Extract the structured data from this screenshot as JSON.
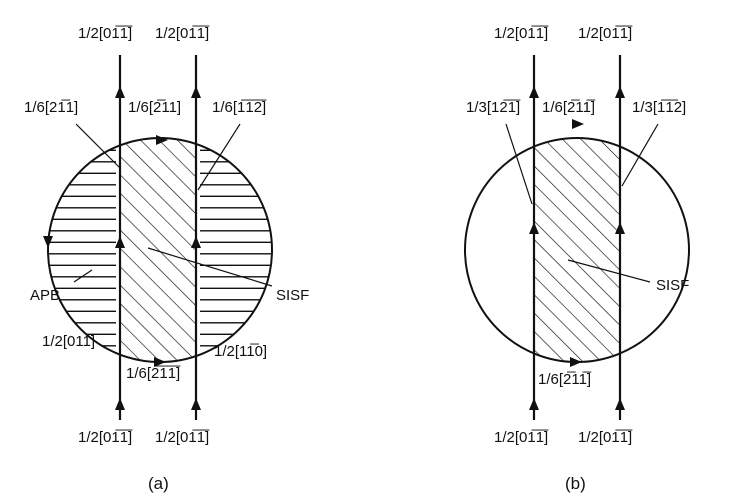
{
  "panels": [
    {
      "id": "a",
      "caption": "(a)",
      "labels": {
        "top_left": "1/2[01̅1̅]",
        "top_right": "1/2[01̅1̅]",
        "partial_left": "1/6[21̅1]",
        "partial_middle": "1/6[2̅11]",
        "partial_right": "1/6[1̅1̅2̅]",
        "apb": "APB",
        "sisf": "SISF",
        "bottom_left_arc": "1/2[011]",
        "bottom_middle": "1/6[2̅1̅1̅]",
        "bottom_right_arc": "1/2[11̅0]",
        "bottom_left": "1/2[01̅1̅]",
        "bottom_right": "1/2[01̅1̅]"
      }
    },
    {
      "id": "b",
      "caption": "(b)",
      "labels": {
        "top_left": "1/2[01̅1̅]",
        "top_right": "1/2[01̅1̅]",
        "partial_left": "1/3[12̅1̅]",
        "partial_middle": "1/6[2̅11̅]",
        "partial_right": "1/3[1̅1̅2]",
        "sisf": "SISF",
        "bottom_middle": "1/6[2̅11̅]",
        "bottom_left": "1/2[01̅1̅]",
        "bottom_right": "1/2[01̅1̅]"
      }
    }
  ]
}
